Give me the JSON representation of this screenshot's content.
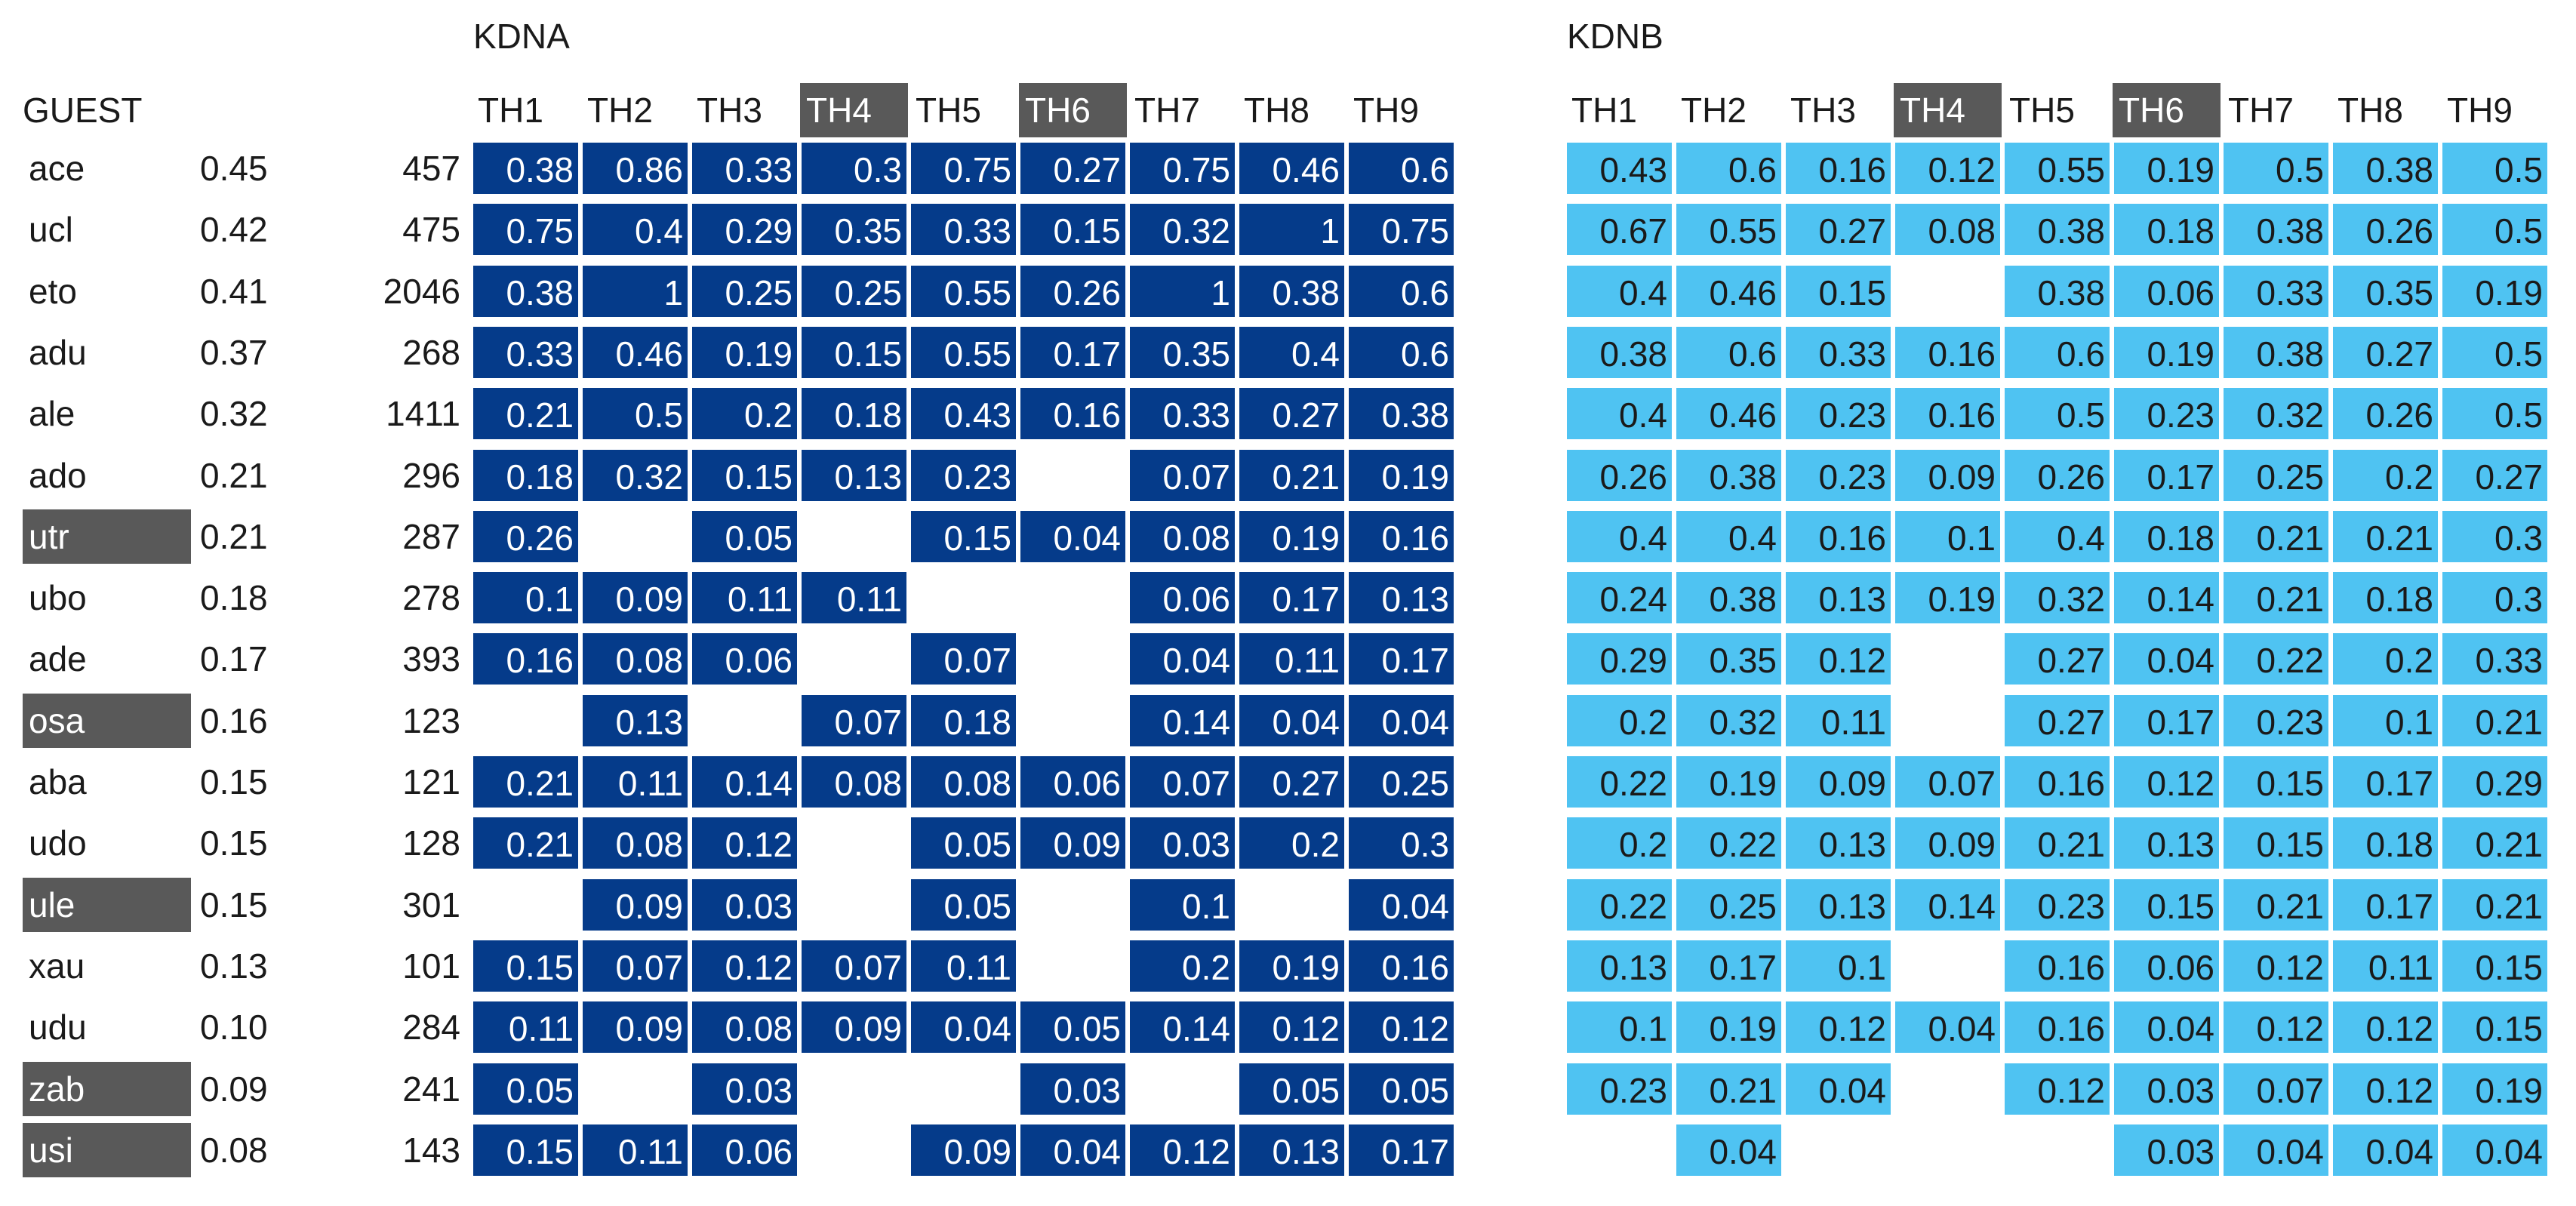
{
  "chart_data": {
    "type": "table",
    "row_header": "GUEST",
    "column_labels": [
      "TH1",
      "TH2",
      "TH3",
      "TH4",
      "TH5",
      "TH6",
      "TH7",
      "TH8",
      "TH9"
    ],
    "highlighted_columns": [
      "TH4",
      "TH6"
    ],
    "rows": [
      {
        "guest": "ace",
        "score": "0.45",
        "count": "457",
        "hl": false
      },
      {
        "guest": "ucl",
        "score": "0.42",
        "count": "475",
        "hl": false
      },
      {
        "guest": "eto",
        "score": "0.41",
        "count": "2046",
        "hl": false
      },
      {
        "guest": "adu",
        "score": "0.37",
        "count": "268",
        "hl": false
      },
      {
        "guest": "ale",
        "score": "0.32",
        "count": "1411",
        "hl": false
      },
      {
        "guest": "ado",
        "score": "0.21",
        "count": "296",
        "hl": false
      },
      {
        "guest": "utr",
        "score": "0.21",
        "count": "287",
        "hl": true
      },
      {
        "guest": "ubo",
        "score": "0.18",
        "count": "278",
        "hl": false
      },
      {
        "guest": "ade",
        "score": "0.17",
        "count": "393",
        "hl": false
      },
      {
        "guest": "osa",
        "score": "0.16",
        "count": "123",
        "hl": true
      },
      {
        "guest": "aba",
        "score": "0.15",
        "count": "121",
        "hl": false
      },
      {
        "guest": "udo",
        "score": "0.15",
        "count": "128",
        "hl": false
      },
      {
        "guest": "ule",
        "score": "0.15",
        "count": "301",
        "hl": true
      },
      {
        "guest": "xau",
        "score": "0.13",
        "count": "101",
        "hl": false
      },
      {
        "guest": "udu",
        "score": "0.10",
        "count": "284",
        "hl": false
      },
      {
        "guest": "zab",
        "score": "0.09",
        "count": "241",
        "hl": true
      },
      {
        "guest": "usi",
        "score": "0.08",
        "count": "143",
        "hl": true
      }
    ],
    "tables": [
      {
        "title": "KDNA",
        "color": "#053b8a",
        "values": [
          [
            "0.38",
            "0.86",
            "0.33",
            "0.3",
            "0.75",
            "0.27",
            "0.75",
            "0.46",
            "0.6"
          ],
          [
            "0.75",
            "0.4",
            "0.29",
            "0.35",
            "0.33",
            "0.15",
            "0.32",
            "1",
            "0.75"
          ],
          [
            "0.38",
            "1",
            "0.25",
            "0.25",
            "0.55",
            "0.26",
            "1",
            "0.38",
            "0.6"
          ],
          [
            "0.33",
            "0.46",
            "0.19",
            "0.15",
            "0.55",
            "0.17",
            "0.35",
            "0.4",
            "0.6"
          ],
          [
            "0.21",
            "0.5",
            "0.2",
            "0.18",
            "0.43",
            "0.16",
            "0.33",
            "0.27",
            "0.38"
          ],
          [
            "0.18",
            "0.32",
            "0.15",
            "0.13",
            "0.23",
            "",
            "0.07",
            "0.21",
            "0.19"
          ],
          [
            "0.26",
            "",
            "0.05",
            "",
            "0.15",
            "0.04",
            "0.08",
            "0.19",
            "0.16"
          ],
          [
            "0.1",
            "0.09",
            "0.11",
            "0.11",
            "",
            "",
            "0.06",
            "0.17",
            "0.13"
          ],
          [
            "0.16",
            "0.08",
            "0.06",
            "",
            "0.07",
            "",
            "0.04",
            "0.11",
            "0.17"
          ],
          [
            "",
            "0.13",
            "",
            "0.07",
            "0.18",
            "",
            "0.14",
            "0.04",
            "0.04"
          ],
          [
            "0.21",
            "0.11",
            "0.14",
            "0.08",
            "0.08",
            "0.06",
            "0.07",
            "0.27",
            "0.25"
          ],
          [
            "0.21",
            "0.08",
            "0.12",
            "",
            "0.05",
            "0.09",
            "0.03",
            "0.2",
            "0.3"
          ],
          [
            "",
            "0.09",
            "0.03",
            "",
            "0.05",
            "",
            "0.1",
            "",
            "0.04"
          ],
          [
            "0.15",
            "0.07",
            "0.12",
            "0.07",
            "0.11",
            "",
            "0.2",
            "0.19",
            "0.16"
          ],
          [
            "0.11",
            "0.09",
            "0.08",
            "0.09",
            "0.04",
            "0.05",
            "0.14",
            "0.12",
            "0.12"
          ],
          [
            "0.05",
            "",
            "0.03",
            "",
            "",
            "0.03",
            "",
            "0.05",
            "0.05"
          ],
          [
            "0.15",
            "0.11",
            "0.06",
            "",
            "0.09",
            "0.04",
            "0.12",
            "0.13",
            "0.17"
          ]
        ]
      },
      {
        "title": "KDNB",
        "color": "#4fc3f2",
        "values": [
          [
            "0.43",
            "0.6",
            "0.16",
            "0.12",
            "0.55",
            "0.19",
            "0.5",
            "0.38",
            "0.5"
          ],
          [
            "0.67",
            "0.55",
            "0.27",
            "0.08",
            "0.38",
            "0.18",
            "0.38",
            "0.26",
            "0.5"
          ],
          [
            "0.4",
            "0.46",
            "0.15",
            "",
            "0.38",
            "0.06",
            "0.33",
            "0.35",
            "0.19"
          ],
          [
            "0.38",
            "0.6",
            "0.33",
            "0.16",
            "0.6",
            "0.19",
            "0.38",
            "0.27",
            "0.5"
          ],
          [
            "0.4",
            "0.46",
            "0.23",
            "0.16",
            "0.5",
            "0.23",
            "0.32",
            "0.26",
            "0.5"
          ],
          [
            "0.26",
            "0.38",
            "0.23",
            "0.09",
            "0.26",
            "0.17",
            "0.25",
            "0.2",
            "0.27"
          ],
          [
            "0.4",
            "0.4",
            "0.16",
            "0.1",
            "0.4",
            "0.18",
            "0.21",
            "0.21",
            "0.3"
          ],
          [
            "0.24",
            "0.38",
            "0.13",
            "0.19",
            "0.32",
            "0.14",
            "0.21",
            "0.18",
            "0.3"
          ],
          [
            "0.29",
            "0.35",
            "0.12",
            "",
            "0.27",
            "0.04",
            "0.22",
            "0.2",
            "0.33"
          ],
          [
            "0.2",
            "0.32",
            "0.11",
            "",
            "0.27",
            "0.17",
            "0.23",
            "0.1",
            "0.21"
          ],
          [
            "0.22",
            "0.19",
            "0.09",
            "0.07",
            "0.16",
            "0.12",
            "0.15",
            "0.17",
            "0.29"
          ],
          [
            "0.2",
            "0.22",
            "0.13",
            "0.09",
            "0.21",
            "0.13",
            "0.15",
            "0.18",
            "0.21"
          ],
          [
            "0.22",
            "0.25",
            "0.13",
            "0.14",
            "0.23",
            "0.15",
            "0.21",
            "0.17",
            "0.21"
          ],
          [
            "0.13",
            "0.17",
            "0.1",
            "",
            "0.16",
            "0.06",
            "0.12",
            "0.11",
            "0.15"
          ],
          [
            "0.1",
            "0.19",
            "0.12",
            "0.04",
            "0.16",
            "0.04",
            "0.12",
            "0.12",
            "0.15"
          ],
          [
            "0.23",
            "0.21",
            "0.04",
            "",
            "0.12",
            "0.03",
            "0.07",
            "0.12",
            "0.19"
          ],
          [
            "",
            "0.04",
            "",
            "",
            "",
            "0.03",
            "0.04",
            "0.04",
            "0.04"
          ]
        ]
      }
    ]
  }
}
